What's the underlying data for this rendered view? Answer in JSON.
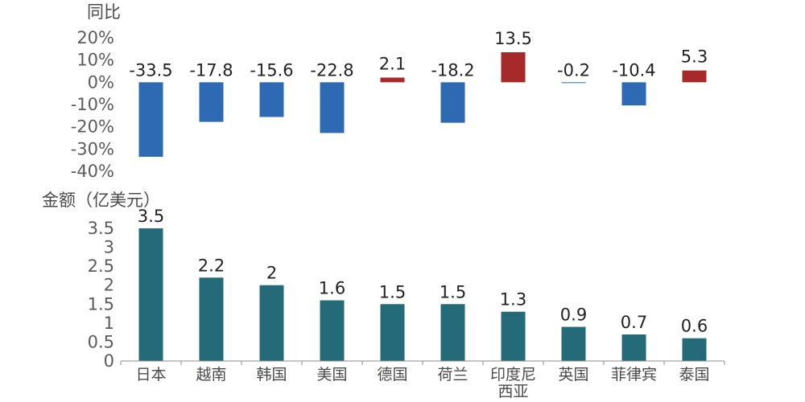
{
  "chart_data": [
    {
      "type": "bar",
      "ylabel": "同比",
      "categories": [
        "日本",
        "越南",
        "韩国",
        "美国",
        "德国",
        "荷兰",
        "印度尼西亚",
        "英国",
        "菲律宾",
        "泰国"
      ],
      "values": [
        -33.5,
        -17.8,
        -15.6,
        -22.8,
        2.1,
        -18.2,
        13.5,
        -0.2,
        -10.4,
        5.3
      ],
      "data_labels": [
        "-33.5",
        "-17.8",
        "-15.6",
        "-22.8",
        "2.1",
        "-18.2",
        "13.5",
        "-0.2",
        "-10.4",
        "5.3"
      ],
      "ylim": [
        -40,
        20
      ],
      "yticks": [
        20,
        10,
        0,
        -10,
        -20,
        -30,
        -40
      ],
      "ytick_labels": [
        "20%",
        "10%",
        "0%",
        "-10%",
        "-20%",
        "-30%",
        "-40%"
      ],
      "colors": {
        "negative": "#2e6ab3",
        "positive": "#a62a2a"
      },
      "grid": false
    },
    {
      "type": "bar",
      "ylabel": "金额（亿美元）",
      "categories": [
        "日本",
        "越南",
        "韩国",
        "美国",
        "德国",
        "荷兰",
        "印度尼西亚",
        "英国",
        "菲律宾",
        "泰国"
      ],
      "category_labels": [
        [
          "日本"
        ],
        [
          "越南"
        ],
        [
          "韩国"
        ],
        [
          "美国"
        ],
        [
          "德国"
        ],
        [
          "荷兰"
        ],
        [
          "印度尼",
          "西亚"
        ],
        [
          "英国"
        ],
        [
          "菲律宾"
        ],
        [
          "泰国"
        ]
      ],
      "values": [
        3.5,
        2.2,
        2.0,
        1.6,
        1.5,
        1.5,
        1.3,
        0.9,
        0.7,
        0.6
      ],
      "data_labels": [
        "3.5",
        "2.2",
        "2",
        "1.6",
        "1.5",
        "1.5",
        "1.3",
        "0.9",
        "0.7",
        "0.6"
      ],
      "ylim": [
        0,
        3.5
      ],
      "yticks": [
        3.5,
        3,
        2.5,
        2,
        1.5,
        1,
        0.5,
        0
      ],
      "ytick_labels": [
        "3.5",
        "3",
        "2.5",
        "2",
        "1.5",
        "1",
        "0.5",
        "0"
      ],
      "colors": {
        "bar": "#256a78",
        "axis": "#8c8c8c"
      },
      "grid": false
    }
  ]
}
